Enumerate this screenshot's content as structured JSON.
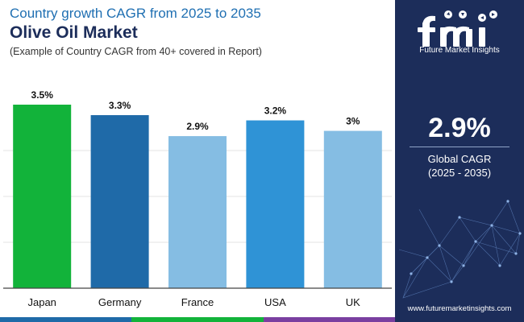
{
  "header": {
    "title_top": "Country growth CAGR from 2025 to 2035",
    "title_main": "Olive Oil Market",
    "subtitle": "(Example of Country CAGR from 40+ covered in Report)"
  },
  "chart_data": {
    "type": "bar",
    "title": "Olive Oil Market",
    "categories": [
      "Japan",
      "Germany",
      "France",
      "USA",
      "UK"
    ],
    "values": [
      3.5,
      3.3,
      2.9,
      3.2,
      3.0
    ],
    "value_labels": [
      "3.5%",
      "3.3%",
      "2.9%",
      "3.2%",
      "3%"
    ],
    "colors": [
      "#12b33a",
      "#1f6aa8",
      "#85bde3",
      "#2f93d6",
      "#85bde3"
    ],
    "ylim": [
      0,
      3.5
    ],
    "xlabel": "",
    "ylabel": "",
    "grid": true
  },
  "sidebar": {
    "brand": "Future Market Insights",
    "global_value": "2.9%",
    "global_label": "Global CAGR",
    "global_range": "(2025 - 2035)",
    "website": "www.futuremarketinsights.com",
    "accent": "#1c2d5a"
  },
  "footer": {
    "colors": [
      "#1f6aa8",
      "#12b33a",
      "#7a3fa0"
    ]
  }
}
